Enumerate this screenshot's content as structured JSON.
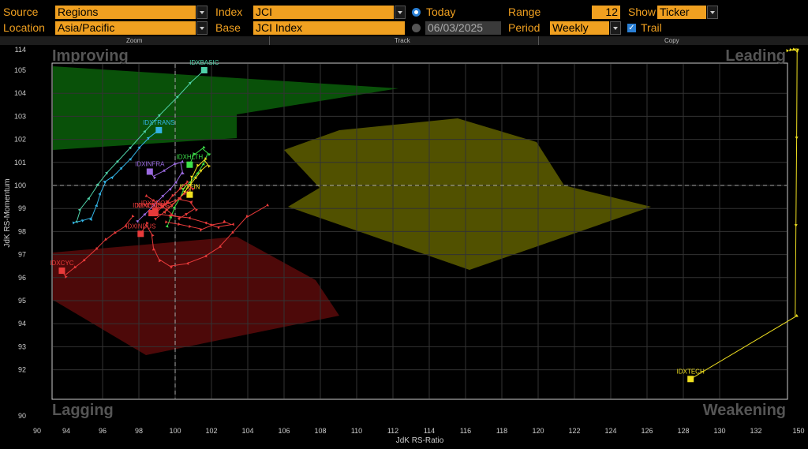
{
  "toolbar": {
    "source_label": "Source",
    "source_value": "Regions",
    "location_label": "Location",
    "location_value": "Asia/Pacific",
    "index_label": "Index",
    "index_value": "JCI",
    "base_label": "Base",
    "base_value": "JCI Index",
    "today_label": "Today",
    "date_value": "06/03/2025",
    "range_label": "Range",
    "range_value": "12",
    "period_label": "Period",
    "period_value": "Weekly",
    "show_label": "Show",
    "show_value": "Ticker",
    "trail_label": "Trail"
  },
  "subbar": {
    "zoom": "Zoom",
    "track": "Track",
    "copy": "Copy"
  },
  "colors": {
    "accent": "#f0a020",
    "improving": "#0a5a0a",
    "leading": "#5a5a00",
    "lagging": "#5a0a0a"
  },
  "chart_data": {
    "type": "scatter",
    "xlabel": "JdK RS-Ratio",
    "ylabel": "JdK RS-Momentum",
    "quadrants": {
      "top_left": "Improving",
      "top_right": "Leading",
      "bottom_left": "Lagging",
      "bottom_right": "Weakening"
    },
    "x_ticks": [
      90,
      94,
      96,
      98,
      100,
      102,
      104,
      106,
      108,
      110,
      112,
      114,
      116,
      118,
      120,
      122,
      124,
      126,
      128,
      130,
      132,
      150
    ],
    "y_ticks": [
      90,
      92,
      93,
      94,
      95,
      96,
      97,
      98,
      99,
      100,
      101,
      102,
      103,
      104,
      105,
      114
    ],
    "xlim": [
      90,
      150
    ],
    "ylim": [
      90,
      114
    ],
    "reference": {
      "x": 100,
      "y": 100
    },
    "series": [
      {
        "name": "IDXBASIC",
        "color": "#4fd1a8",
        "points": [
          [
            94.6,
            98.5
          ],
          [
            94.8,
            99
          ],
          [
            95.3,
            99.5
          ],
          [
            95.8,
            100.1
          ],
          [
            96.3,
            100.6
          ],
          [
            96.9,
            101.1
          ],
          [
            97.6,
            101.7
          ],
          [
            98.4,
            102.4
          ],
          [
            99.2,
            103.1
          ],
          [
            100.2,
            103.9
          ],
          [
            100.9,
            104.5
          ],
          [
            101.6,
            105.0
          ]
        ]
      },
      {
        "name": "IDXTRANS",
        "color": "#33b4e6",
        "points": [
          [
            94.5,
            98.4
          ],
          [
            95,
            98.5
          ],
          [
            95.4,
            98.6
          ],
          [
            95.7,
            99.2
          ],
          [
            95.9,
            99.7
          ],
          [
            96.2,
            100.2
          ],
          [
            96.6,
            100.4
          ],
          [
            97.1,
            100.8
          ],
          [
            97.6,
            101.2
          ],
          [
            98.1,
            101.7
          ],
          [
            98.6,
            102.1
          ],
          [
            99.1,
            102.4
          ]
        ]
      },
      {
        "name": "IDXHLTH",
        "color": "#3de04a",
        "points": [
          [
            99.6,
            98.3
          ],
          [
            99.8,
            98.7
          ],
          [
            100,
            99.1
          ],
          [
            100.3,
            99.5
          ],
          [
            100.5,
            99.9
          ],
          [
            100.9,
            100.2
          ],
          [
            101.3,
            100.6
          ],
          [
            101.6,
            101
          ],
          [
            101.8,
            101.4
          ],
          [
            101.5,
            101.6
          ],
          [
            101,
            101.3
          ],
          [
            100.8,
            100.9
          ]
        ]
      },
      {
        "name": "IDXINFRA",
        "color": "#9b6ae0",
        "points": [
          [
            98,
            98.5
          ],
          [
            98.4,
            98.8
          ],
          [
            98.9,
            99.2
          ],
          [
            99.4,
            99.6
          ],
          [
            99.8,
            99.9
          ],
          [
            100.1,
            100.2
          ],
          [
            100.4,
            100.6
          ],
          [
            100.3,
            101
          ],
          [
            99.9,
            100.9
          ],
          [
            99.3,
            100.6
          ],
          [
            98.8,
            100.4
          ],
          [
            98.6,
            100.6
          ]
        ]
      },
      {
        "name": "IDXFIN",
        "color": "#f0e020",
        "points": [
          [
            99.5,
            98.9
          ],
          [
            99.9,
            99.2
          ],
          [
            100.3,
            99.5
          ],
          [
            100.6,
            99.8
          ],
          [
            100.9,
            100.1
          ],
          [
            101.2,
            100.4
          ],
          [
            101.5,
            100.7
          ],
          [
            101.8,
            100.9
          ],
          [
            101.6,
            101.1
          ],
          [
            101.2,
            100.8
          ],
          [
            100.9,
            100.3
          ],
          [
            100.8,
            99.6
          ]
        ]
      },
      {
        "name": "IDXNONCYC",
        "color": "#e83a3a",
        "points": [
          [
            99.6,
            98.4
          ],
          [
            100.3,
            98.3
          ],
          [
            100.9,
            98.2
          ],
          [
            101.5,
            98.1
          ],
          [
            102.1,
            98.3
          ],
          [
            102.8,
            98.4
          ],
          [
            103.1,
            98.3
          ],
          [
            102.3,
            98.2
          ],
          [
            101.6,
            98.4
          ],
          [
            100.7,
            98.6
          ],
          [
            99.6,
            98.7
          ],
          [
            98.7,
            98.8
          ]
        ]
      },
      {
        "name": "IDXPROP",
        "color": "#e83a3a",
        "points": [
          [
            98.5,
            99.5
          ],
          [
            98.9,
            99.3
          ],
          [
            99.3,
            99.1
          ],
          [
            99.6,
            98.9
          ],
          [
            99.9,
            98.7
          ],
          [
            100.3,
            98.6
          ],
          [
            100.7,
            98.8
          ],
          [
            101.1,
            99
          ],
          [
            100.8,
            99.3
          ],
          [
            100.2,
            99.4
          ],
          [
            99.5,
            99.2
          ],
          [
            98.9,
            98.9
          ]
        ]
      },
      {
        "name": "IDXENERGY",
        "color": "#e83a3a",
        "points": [
          [
            99,
            98.6
          ],
          [
            99.5,
            98.9
          ],
          [
            99.9,
            99.2
          ],
          [
            100.3,
            99.5
          ],
          [
            100.6,
            99.7
          ],
          [
            100.9,
            99.9
          ],
          [
            100.6,
            100.1
          ],
          [
            100.2,
            99.8
          ],
          [
            99.8,
            99.5
          ],
          [
            99.5,
            99.2
          ],
          [
            99.2,
            99
          ],
          [
            98.9,
            98.8
          ]
        ]
      },
      {
        "name": "IDXINDUS",
        "color": "#e83a3a",
        "points": [
          [
            105,
            99.1
          ],
          [
            103.9,
            98.6
          ],
          [
            103.1,
            97.9
          ],
          [
            102.4,
            97.3
          ],
          [
            101.6,
            96.9
          ],
          [
            100.6,
            96.6
          ],
          [
            99.7,
            96.5
          ],
          [
            99.1,
            96.8
          ],
          [
            98.8,
            97.3
          ],
          [
            98.7,
            97.9
          ],
          [
            98.4,
            98.3
          ],
          [
            98.1,
            97.9
          ]
        ]
      },
      {
        "name": "IDXCYC",
        "color": "#e83a3a",
        "points": [
          [
            97.6,
            98.6
          ],
          [
            97.2,
            98.2
          ],
          [
            96.6,
            97.9
          ],
          [
            96.1,
            97.6
          ],
          [
            95.6,
            97.2
          ],
          [
            94.9,
            96.7
          ],
          [
            94.4,
            96.4
          ],
          [
            93.8,
            96.1
          ],
          [
            93.4,
            96.3
          ]
        ]
      },
      {
        "name": "IDXTECH",
        "color": "#f0e020",
        "points": [
          [
            146,
            113.7
          ],
          [
            147.4,
            113.9
          ],
          [
            148.6,
            113.8
          ],
          [
            149.1,
            113.6
          ],
          [
            149.5,
            113.3
          ],
          [
            149.4,
            112.5
          ],
          [
            149.2,
            102
          ],
          [
            148.9,
            98.2
          ],
          [
            148.6,
            94.3
          ],
          [
            128.4,
            91.6
          ]
        ]
      }
    ]
  }
}
